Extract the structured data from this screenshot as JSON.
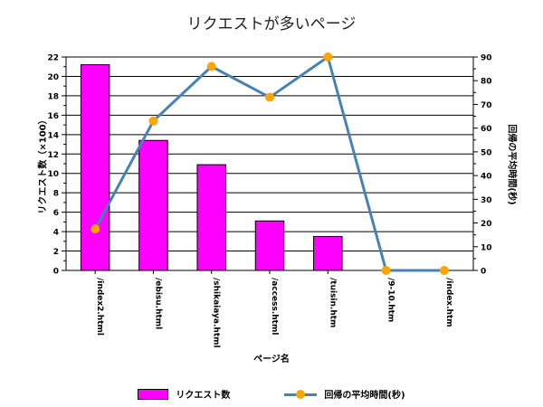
{
  "chart_data": {
    "type": "bar",
    "title": "リクエストが多いページ",
    "xlabel": "ページ名",
    "ylabel": "リクエスト数（×100）",
    "y2label": "回帰の平均時間(秒)",
    "categories": [
      "/index2.html",
      "/ebisu.html",
      "/shikaiaya.html",
      "/access.html",
      "/tuisin.htm",
      "/9-10.htm",
      "/index.htm"
    ],
    "ylim": [
      0,
      22
    ],
    "yticks": [
      0,
      2,
      4,
      6,
      8,
      10,
      12,
      14,
      16,
      18,
      20,
      22
    ],
    "y2lim": [
      0,
      90
    ],
    "y2ticks": [
      0,
      10,
      20,
      30,
      40,
      50,
      60,
      70,
      80,
      90
    ],
    "grid": true,
    "legend_position": "bottom",
    "series": [
      {
        "name": "リクエスト数",
        "type": "bar",
        "axis": "left",
        "color": "#ff00ff",
        "values": [
          21.2,
          13.4,
          10.9,
          5.1,
          3.5,
          0,
          0
        ]
      },
      {
        "name": "回帰の平均時間(秒)",
        "type": "line",
        "axis": "right",
        "color": "#4682b4",
        "marker_color": "#ffa500",
        "values": [
          17.5,
          63,
          86,
          73,
          90,
          0,
          0
        ]
      }
    ]
  }
}
